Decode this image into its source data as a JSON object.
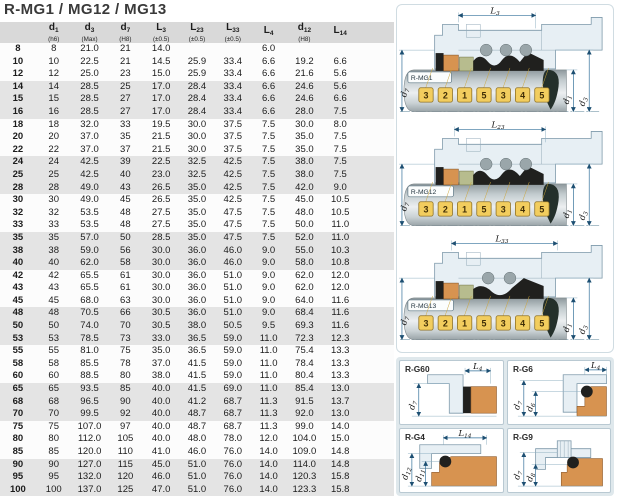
{
  "title": "R-MG1 / MG12 / MG13",
  "table": {
    "headers": [
      {
        "base": "",
        "sub": "",
        "tol": ""
      },
      {
        "base": "d",
        "sub": "1",
        "tol": "(h6)"
      },
      {
        "base": "d",
        "sub": "3",
        "tol": "(Max)"
      },
      {
        "base": "d",
        "sub": "7",
        "tol": "(H8)"
      },
      {
        "base": "L",
        "sub": "3",
        "tol": "(±0.5)"
      },
      {
        "base": "L",
        "sub": "23",
        "tol": "(±0.5)"
      },
      {
        "base": "L",
        "sub": "33",
        "tol": "(±0.5)"
      },
      {
        "base": "L",
        "sub": "4",
        "tol": ""
      },
      {
        "base": "d",
        "sub": "12",
        "tol": "(H8)"
      },
      {
        "base": "L",
        "sub": "14",
        "tol": ""
      }
    ],
    "rows": [
      [
        "8",
        "8",
        "21.0",
        "21",
        "14.0",
        "",
        "",
        "6.0",
        "",
        ""
      ],
      [
        "10",
        "10",
        "22.5",
        "21",
        "14.5",
        "25.9",
        "33.4",
        "6.6",
        "19.2",
        "6.6"
      ],
      [
        "12",
        "12",
        "25.0",
        "23",
        "15.0",
        "25.9",
        "33.4",
        "6.6",
        "21.6",
        "5.6"
      ],
      [
        "14",
        "14",
        "28.5",
        "25",
        "17.0",
        "28.4",
        "33.4",
        "6.6",
        "24.6",
        "5.6"
      ],
      [
        "15",
        "15",
        "28.5",
        "27",
        "17.0",
        "28.4",
        "33.4",
        "6.6",
        "24.6",
        "6.6"
      ],
      [
        "16",
        "16",
        "28.5",
        "27",
        "17.0",
        "28.4",
        "33.4",
        "6.6",
        "28.0",
        "7.5"
      ],
      [
        "18",
        "18",
        "32.0",
        "33",
        "19.5",
        "30.0",
        "37.5",
        "7.5",
        "30.0",
        "8.0"
      ],
      [
        "20",
        "20",
        "37.0",
        "35",
        "21.5",
        "30.0",
        "37.5",
        "7.5",
        "35.0",
        "7.5"
      ],
      [
        "22",
        "22",
        "37.0",
        "37",
        "21.5",
        "30.0",
        "37.5",
        "7.5",
        "35.0",
        "7.5"
      ],
      [
        "24",
        "24",
        "42.5",
        "39",
        "22.5",
        "32.5",
        "42.5",
        "7.5",
        "38.0",
        "7.5"
      ],
      [
        "25",
        "25",
        "42.5",
        "40",
        "23.0",
        "32.5",
        "42.5",
        "7.5",
        "38.0",
        "7.5"
      ],
      [
        "28",
        "28",
        "49.0",
        "43",
        "26.5",
        "35.0",
        "42.5",
        "7.5",
        "42.0",
        "9.0"
      ],
      [
        "30",
        "30",
        "49.0",
        "45",
        "26.5",
        "35.0",
        "42.5",
        "7.5",
        "45.0",
        "10.5"
      ],
      [
        "32",
        "32",
        "53.5",
        "48",
        "27.5",
        "35.0",
        "47.5",
        "7.5",
        "48.0",
        "10.5"
      ],
      [
        "33",
        "33",
        "53.5",
        "48",
        "27.5",
        "35.0",
        "47.5",
        "7.5",
        "50.0",
        "11.0"
      ],
      [
        "35",
        "35",
        "57.0",
        "50",
        "28.5",
        "35.0",
        "47.5",
        "7.5",
        "52.0",
        "11.0"
      ],
      [
        "38",
        "38",
        "59.0",
        "56",
        "30.0",
        "36.0",
        "46.0",
        "9.0",
        "55.0",
        "10.3"
      ],
      [
        "40",
        "40",
        "62.0",
        "58",
        "30.0",
        "36.0",
        "46.0",
        "9.0",
        "58.0",
        "10.8"
      ],
      [
        "42",
        "42",
        "65.5",
        "61",
        "30.0",
        "36.0",
        "51.0",
        "9.0",
        "62.0",
        "12.0"
      ],
      [
        "43",
        "43",
        "65.5",
        "61",
        "30.0",
        "36.0",
        "51.0",
        "9.0",
        "62.0",
        "12.0"
      ],
      [
        "45",
        "45",
        "68.0",
        "63",
        "30.0",
        "36.0",
        "51.0",
        "9.0",
        "64.0",
        "11.6"
      ],
      [
        "48",
        "48",
        "70.5",
        "66",
        "30.5",
        "36.0",
        "51.0",
        "9.0",
        "68.4",
        "11.6"
      ],
      [
        "50",
        "50",
        "74.0",
        "70",
        "30.5",
        "38.0",
        "50.5",
        "9.5",
        "69.3",
        "11.6"
      ],
      [
        "53",
        "53",
        "78.5",
        "73",
        "33.0",
        "36.5",
        "59.0",
        "11.0",
        "72.3",
        "12.3"
      ],
      [
        "55",
        "55",
        "81.0",
        "75",
        "35.0",
        "36.5",
        "59.0",
        "11.0",
        "75.4",
        "13.3"
      ],
      [
        "58",
        "58",
        "85.5",
        "78",
        "37.0",
        "41.5",
        "59.0",
        "11.0",
        "78.4",
        "13.3"
      ],
      [
        "60",
        "60",
        "88.5",
        "80",
        "38.0",
        "41.5",
        "59.0",
        "11.0",
        "80.4",
        "13.3"
      ],
      [
        "65",
        "65",
        "93.5",
        "85",
        "40.0",
        "41.5",
        "69.0",
        "11.0",
        "85.4",
        "13.0"
      ],
      [
        "68",
        "68",
        "96.5",
        "90",
        "40.0",
        "41.2",
        "68.7",
        "11.3",
        "91.5",
        "13.7"
      ],
      [
        "70",
        "70",
        "99.5",
        "92",
        "40.0",
        "48.7",
        "68.7",
        "11.3",
        "92.0",
        "13.0"
      ],
      [
        "75",
        "75",
        "107.0",
        "97",
        "40.0",
        "48.7",
        "68.7",
        "11.3",
        "99.0",
        "14.0"
      ],
      [
        "80",
        "80",
        "112.0",
        "105",
        "40.0",
        "48.0",
        "78.0",
        "12.0",
        "104.0",
        "15.0"
      ],
      [
        "85",
        "85",
        "120.0",
        "110",
        "41.0",
        "46.0",
        "76.0",
        "14.0",
        "109.0",
        "14.8"
      ],
      [
        "90",
        "90",
        "127.0",
        "115",
        "45.0",
        "51.0",
        "76.0",
        "14.0",
        "114.0",
        "14.8"
      ],
      [
        "95",
        "95",
        "132.0",
        "120",
        "46.0",
        "51.0",
        "76.0",
        "14.0",
        "120.3",
        "15.8"
      ],
      [
        "100",
        "100",
        "137.0",
        "125",
        "47.0",
        "51.0",
        "76.0",
        "14.0",
        "123.3",
        "15.8"
      ]
    ]
  },
  "callouts": [
    "3",
    "2",
    "1",
    "5",
    "3",
    "4",
    "5"
  ],
  "diagrams": [
    {
      "model": "R-MG1",
      "dim": {
        "base": "L",
        "sub": "3"
      },
      "d_left": {
        "base": "d",
        "sub": "7"
      },
      "d_inner": {
        "base": "d",
        "sub": "1"
      },
      "d_outer": {
        "base": "d",
        "sub": "3"
      }
    },
    {
      "model": "R-MG12",
      "dim": {
        "base": "L",
        "sub": "23"
      },
      "d_left": {
        "base": "d",
        "sub": "7"
      },
      "d_inner": {
        "base": "d",
        "sub": "1"
      },
      "d_outer": {
        "base": "d",
        "sub": "3"
      }
    },
    {
      "model": "R-MG13",
      "dim": {
        "base": "L",
        "sub": "33"
      },
      "d_left": {
        "base": "d",
        "sub": "7"
      },
      "d_inner": {
        "base": "d",
        "sub": "1"
      },
      "d_outer": {
        "base": "d",
        "sub": "3"
      }
    }
  ],
  "seats": [
    {
      "model": "R-G60",
      "dim": {
        "base": "L",
        "sub": "4"
      },
      "d1": {
        "base": "d",
        "sub": "7"
      }
    },
    {
      "model": "R-G6",
      "dim": {
        "base": "L",
        "sub": "4"
      },
      "d1": {
        "base": "d",
        "sub": "7"
      },
      "d2": {
        "base": "d",
        "sub": "6"
      }
    },
    {
      "model": "R-G4",
      "dim": {
        "base": "L",
        "sub": "14"
      },
      "d1": {
        "base": "d",
        "sub": "12"
      },
      "d2": {
        "base": "d",
        "sub": "11"
      }
    },
    {
      "model": "R-G9",
      "d1": {
        "base": "d",
        "sub": "7"
      },
      "d2": {
        "base": "d",
        "sub": "8"
      }
    }
  ],
  "colors": {
    "dimension_line": "#33709a",
    "seat_orange": "#d79350",
    "callout_yellow": "#f2cd5e",
    "housing_blue": "#e7eff4",
    "header_gray": "#d9d9d9",
    "stripe_gray": "#e4e4e4",
    "seal_black": "#20201e"
  }
}
